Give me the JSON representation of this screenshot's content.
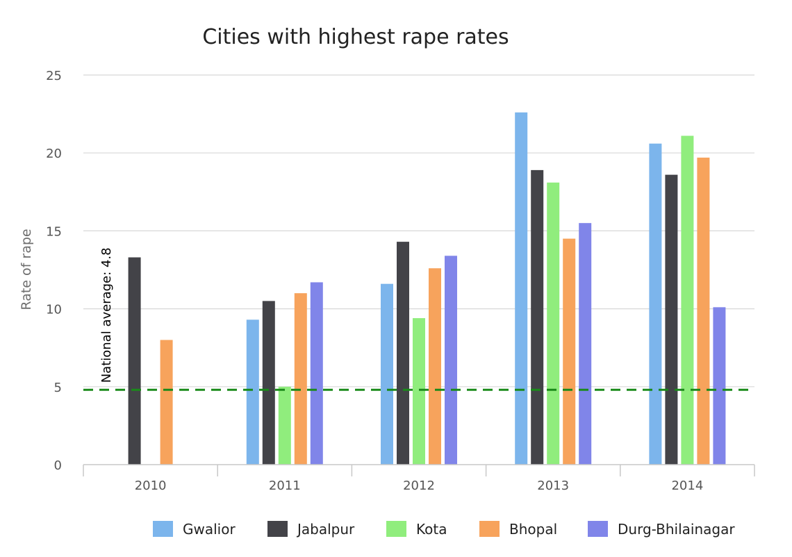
{
  "chart_data": {
    "type": "bar",
    "title": "Cities with highest rape rates",
    "xlabel": "",
    "ylabel": "Rate of rape",
    "ylim": [
      0,
      25
    ],
    "yticks": [
      0,
      5,
      10,
      15,
      20,
      25
    ],
    "categories": [
      "2010",
      "2011",
      "2012",
      "2013",
      "2014"
    ],
    "series": [
      {
        "name": "Gwalior",
        "color": "#7cb5ec",
        "values": [
          null,
          9.3,
          11.6,
          22.6,
          20.6
        ]
      },
      {
        "name": "Jabalpur",
        "color": "#434348",
        "values": [
          13.3,
          10.5,
          14.3,
          18.9,
          18.6
        ]
      },
      {
        "name": "Kota",
        "color": "#90ed7d",
        "values": [
          null,
          5.0,
          9.4,
          18.1,
          21.1
        ]
      },
      {
        "name": "Bhopal",
        "color": "#f7a35c",
        "values": [
          8.0,
          11.0,
          12.6,
          14.5,
          19.7
        ]
      },
      {
        "name": "Durg-Bhilainagar",
        "color": "#8085e9",
        "values": [
          null,
          11.7,
          13.4,
          15.5,
          10.1
        ]
      }
    ],
    "reference_line": {
      "value": 4.8,
      "label": "National average: 4.8",
      "color": "#1a8a1a",
      "style": "dashed"
    },
    "grid": true,
    "legend_position": "bottom"
  }
}
